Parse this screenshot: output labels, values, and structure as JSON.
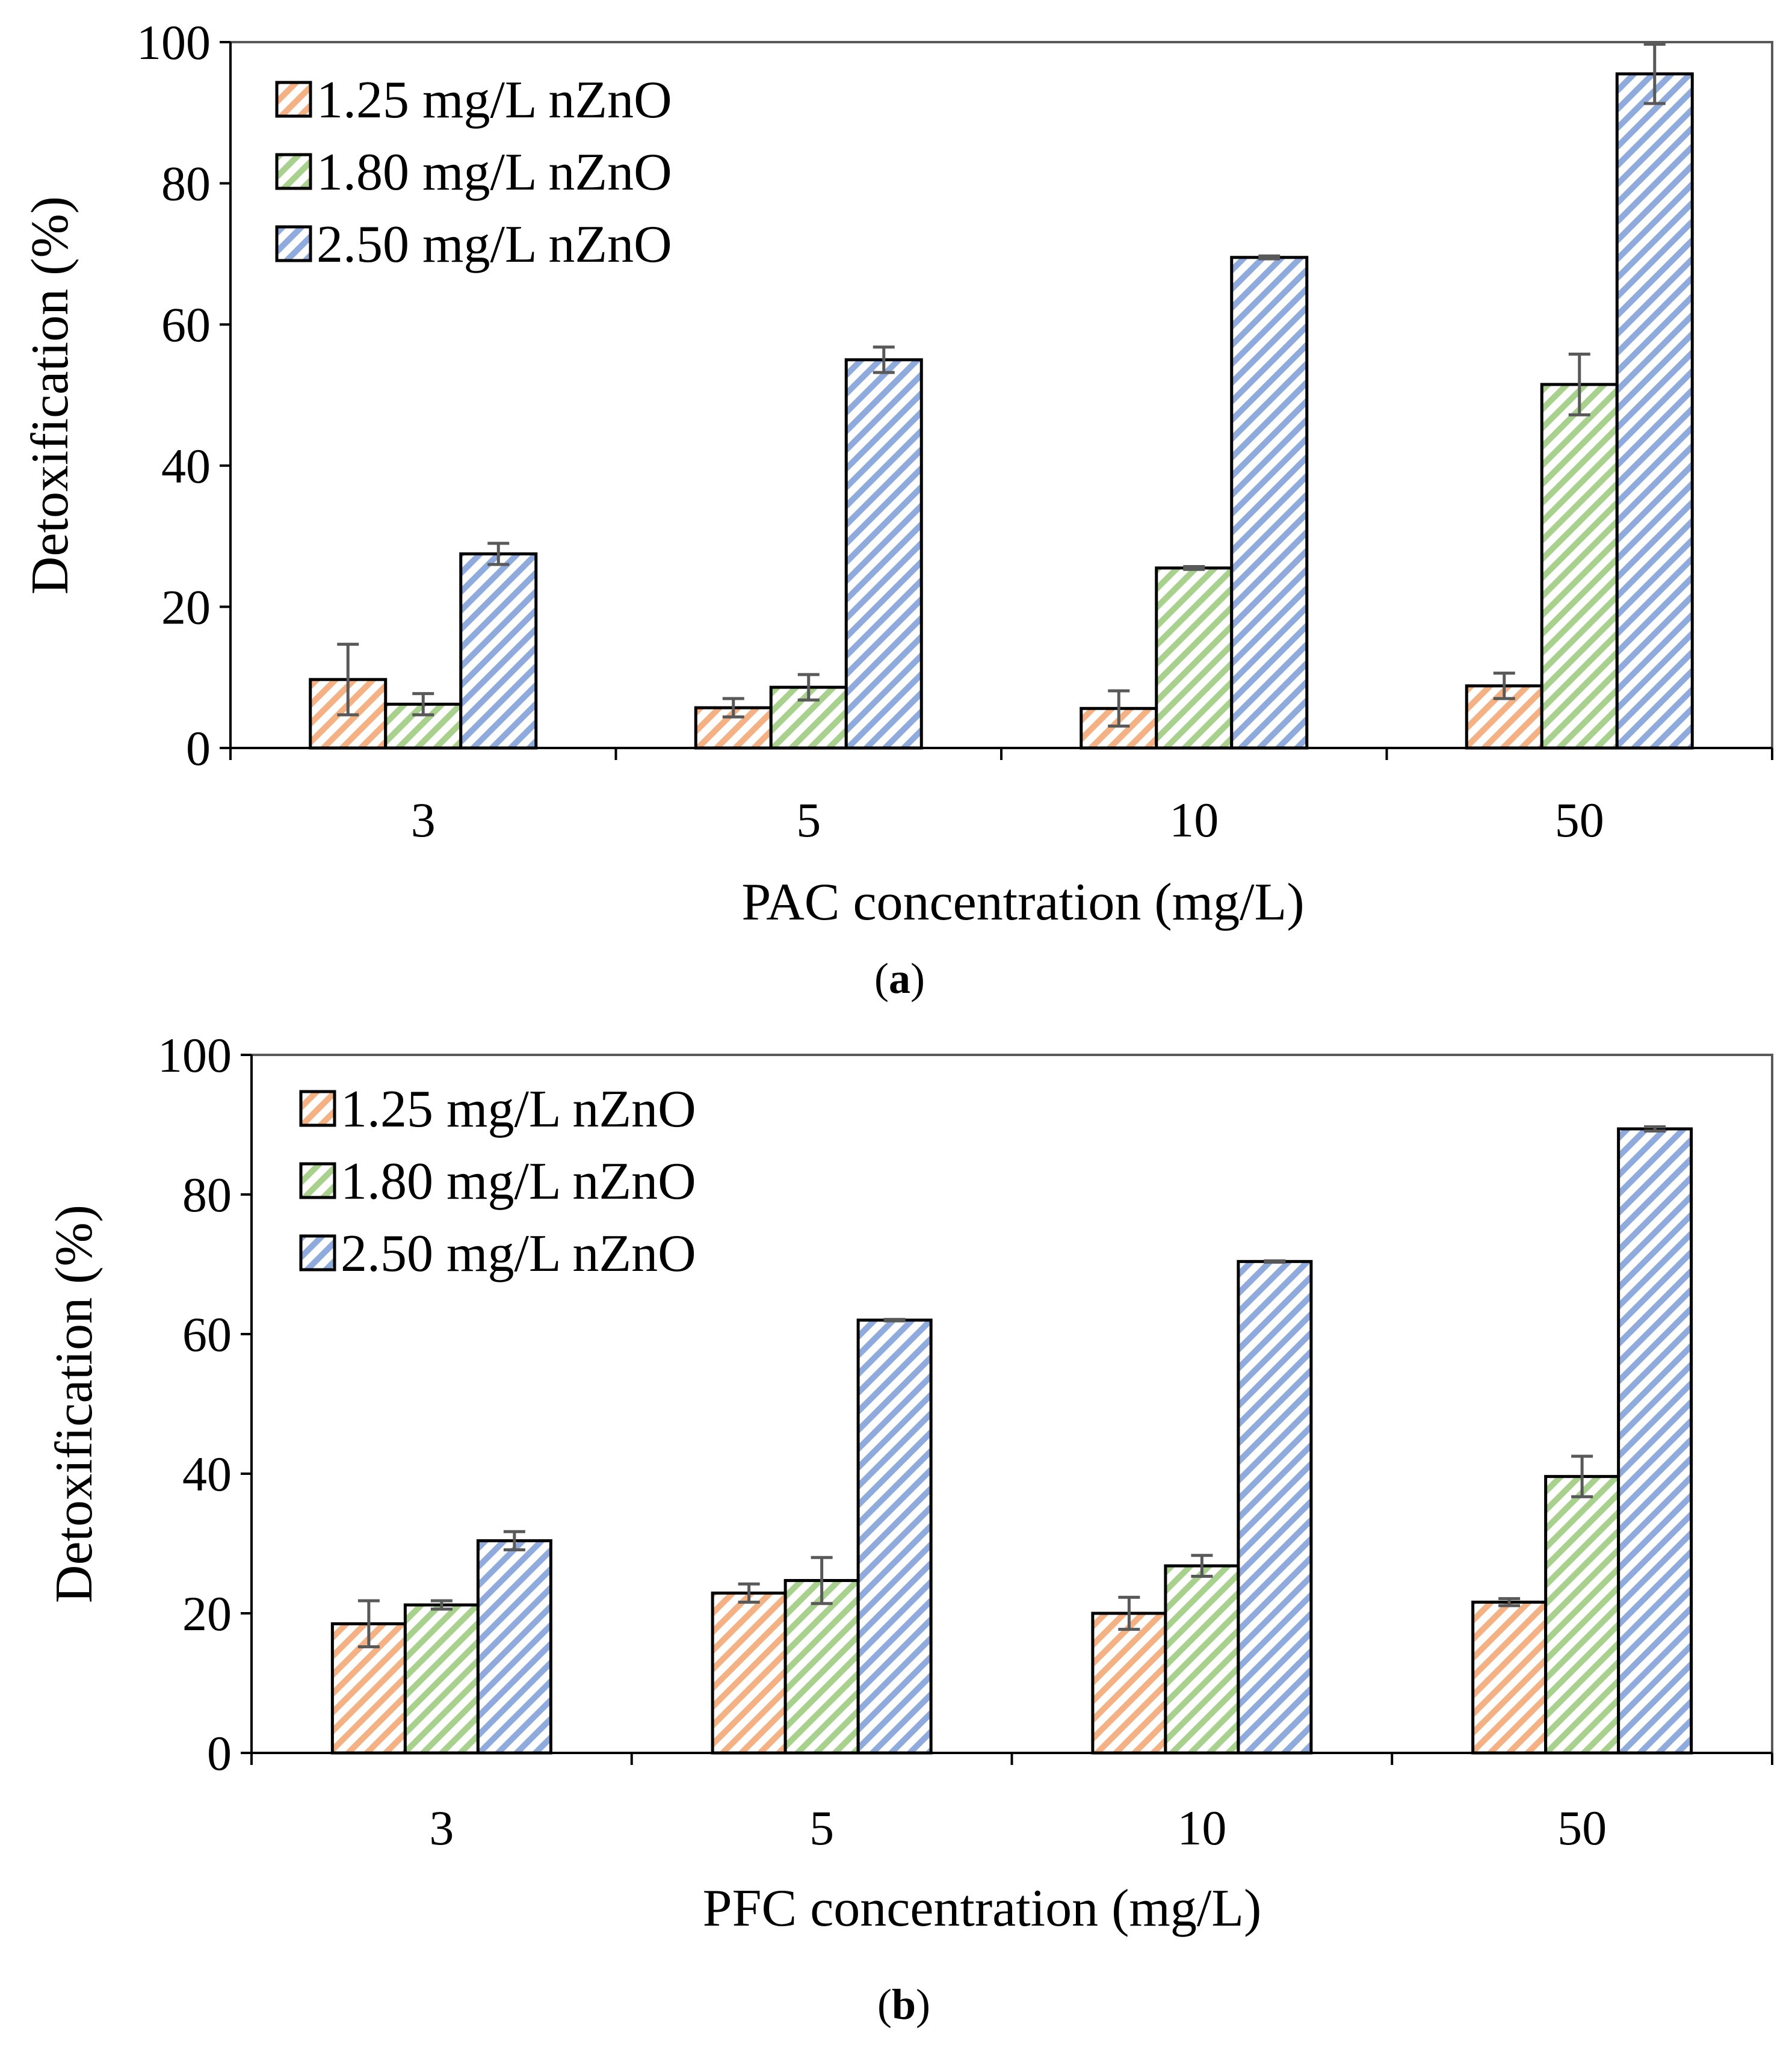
{
  "colors": {
    "series": [
      "#f4b183",
      "#a9d18e",
      "#8faadc"
    ],
    "bar_stroke": "#000000",
    "error_bar": "#595959"
  },
  "chart_data": [
    {
      "type": "bar",
      "panel": "a",
      "caption": {
        "open": "(",
        "letter": "a",
        "close": ")"
      },
      "categories": [
        "3",
        "5",
        "10",
        "50"
      ],
      "xlabel": "PAC concentration (mg/L)",
      "ylabel": "Detoxification (%)",
      "ylim": [
        0,
        100
      ],
      "yticks": [
        "0",
        "20",
        "40",
        "60",
        "80",
        "100"
      ],
      "legend_position": "top-left",
      "series": [
        {
          "name": "1.25 mg/L nZnO",
          "values": [
            9.7,
            5.7,
            5.6,
            8.8
          ],
          "errors": [
            5.0,
            1.3,
            2.5,
            1.8
          ]
        },
        {
          "name": "1.80 mg/L nZnO",
          "values": [
            6.2,
            8.6,
            25.5,
            51.5
          ],
          "errors": [
            1.5,
            1.8,
            0.2,
            4.3
          ]
        },
        {
          "name": "2.50 mg/L nZnO",
          "values": [
            27.5,
            55.0,
            69.5,
            95.5
          ],
          "errors": [
            1.5,
            1.8,
            0.2,
            4.2
          ]
        }
      ]
    },
    {
      "type": "bar",
      "panel": "b",
      "caption": {
        "open": "(",
        "letter": "b",
        "close": ")"
      },
      "categories": [
        "3",
        "5",
        "10",
        "50"
      ],
      "xlabel": "PFC concentration (mg/L)",
      "ylabel": "Detoxification (%)",
      "ylim": [
        0,
        100
      ],
      "yticks": [
        "0",
        "20",
        "40",
        "60",
        "80",
        "100"
      ],
      "legend_position": "top-left",
      "series": [
        {
          "name": "1.25 mg/L nZnO",
          "values": [
            18.5,
            22.9,
            20.0,
            21.6
          ],
          "errors": [
            3.3,
            1.3,
            2.3,
            0.5
          ]
        },
        {
          "name": "1.80 mg/L nZnO",
          "values": [
            21.2,
            24.7,
            26.8,
            39.6
          ],
          "errors": [
            0.6,
            3.3,
            1.5,
            2.9
          ]
        },
        {
          "name": "2.50 mg/L nZnO",
          "values": [
            30.4,
            62.0,
            70.4,
            89.4
          ],
          "errors": [
            1.3,
            0.1,
            0.1,
            0.3
          ]
        }
      ]
    }
  ]
}
